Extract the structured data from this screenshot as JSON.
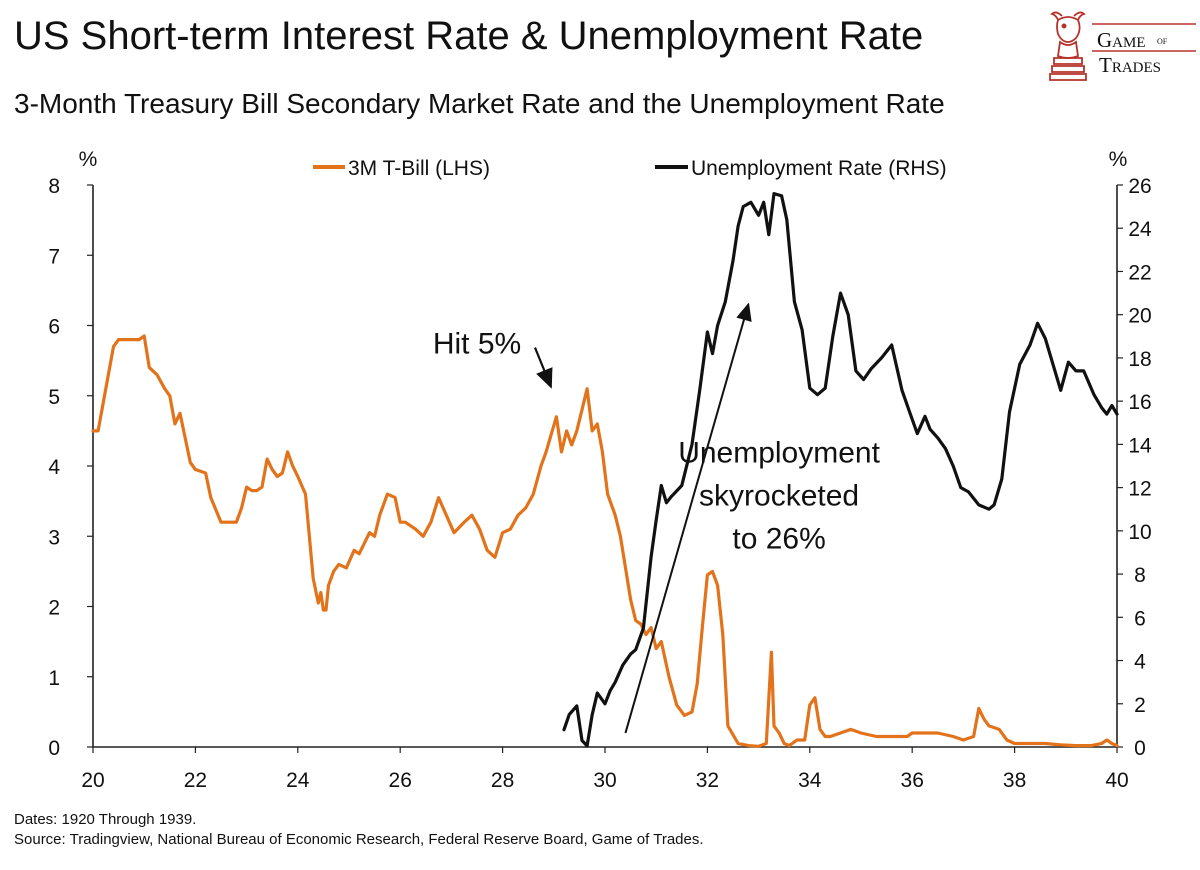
{
  "header": {
    "title": "US Short-term Interest Rate & Unemployment Rate",
    "subtitle": "3-Month Treasury Bill Secondary Market Rate and the Unemployment Rate"
  },
  "logo": {
    "line1": "Game",
    "line_of": "of",
    "line2": "Trades",
    "icon": "bull-knight-chess-icon",
    "color": "#b5332a"
  },
  "footer": {
    "dates": "Dates: 1920 Through 1939.",
    "source": "Source: Tradingview, National Bureau of Economic Research, Federal Reserve Board, Game of Trades."
  },
  "chart_data": {
    "type": "line",
    "title": "US Short-term Interest Rate & Unemployment Rate",
    "subtitle": "3-Month Treasury Bill Secondary Market Rate and the Unemployment Rate",
    "grid": false,
    "legend_position": "top-center",
    "x_axis": {
      "xlim": [
        1920,
        1940
      ],
      "ticks": [
        1920,
        1922,
        1924,
        1926,
        1928,
        1930,
        1932,
        1934,
        1936,
        1938,
        1940
      ],
      "tick_labels": [
        "20",
        "22",
        "24",
        "26",
        "28",
        "30",
        "32",
        "34",
        "36",
        "38",
        "40"
      ]
    },
    "y_left": {
      "unit_label": "%",
      "ylim": [
        0,
        8
      ],
      "ticks": [
        0,
        1,
        2,
        3,
        4,
        5,
        6,
        7,
        8
      ],
      "tick_labels": [
        "0",
        "1",
        "2",
        "3",
        "4",
        "5",
        "6",
        "7",
        "8"
      ]
    },
    "y_right": {
      "unit_label": "%",
      "ylim": [
        0,
        26
      ],
      "ticks": [
        0,
        2,
        4,
        6,
        8,
        10,
        12,
        14,
        16,
        18,
        20,
        22,
        24,
        26
      ],
      "tick_labels": [
        "0",
        "2",
        "4",
        "6",
        "8",
        "10",
        "12",
        "14",
        "16",
        "18",
        "20",
        "22",
        "24",
        "26"
      ]
    },
    "series": [
      {
        "name": "3M T-Bill (LHS)",
        "axis": "left",
        "color": "#e3731b",
        "x": [
          1920.0,
          1920.1,
          1920.25,
          1920.4,
          1920.5,
          1920.7,
          1920.9,
          1921.0,
          1921.1,
          1921.25,
          1921.4,
          1921.5,
          1921.6,
          1921.7,
          1921.8,
          1921.9,
          1922.0,
          1922.2,
          1922.3,
          1922.5,
          1922.65,
          1922.8,
          1922.9,
          1923.0,
          1923.1,
          1923.2,
          1923.3,
          1923.4,
          1923.5,
          1923.6,
          1923.7,
          1923.8,
          1923.9,
          1924.0,
          1924.15,
          1924.3,
          1924.4,
          1924.45,
          1924.5,
          1924.55,
          1924.6,
          1924.7,
          1924.8,
          1924.95,
          1925.1,
          1925.2,
          1925.4,
          1925.5,
          1925.6,
          1925.75,
          1925.9,
          1926.0,
          1926.1,
          1926.3,
          1926.45,
          1926.6,
          1926.75,
          1926.9,
          1927.05,
          1927.25,
          1927.4,
          1927.55,
          1927.7,
          1927.85,
          1928.0,
          1928.15,
          1928.3,
          1928.45,
          1928.6,
          1928.75,
          1928.85,
          1928.95,
          1929.05,
          1929.15,
          1929.25,
          1929.35,
          1929.45,
          1929.55,
          1929.65,
          1929.75,
          1929.85,
          1929.95,
          1930.05,
          1930.2,
          1930.3,
          1930.4,
          1930.5,
          1930.6,
          1930.7,
          1930.8,
          1930.9,
          1931.0,
          1931.1,
          1931.25,
          1931.4,
          1931.55,
          1931.7,
          1931.8,
          1931.9,
          1932.0,
          1932.1,
          1932.2,
          1932.3,
          1932.4,
          1932.6,
          1932.8,
          1933.0,
          1933.15,
          1933.25,
          1933.3,
          1933.4,
          1933.5,
          1933.6,
          1933.75,
          1933.9,
          1934.0,
          1934.1,
          1934.2,
          1934.3,
          1934.4,
          1934.6,
          1934.8,
          1935.0,
          1935.3,
          1935.6,
          1935.9,
          1936.0,
          1936.2,
          1936.5,
          1936.8,
          1937.0,
          1937.2,
          1937.3,
          1937.4,
          1937.5,
          1937.7,
          1937.85,
          1938.0,
          1938.3,
          1938.6,
          1938.9,
          1939.2,
          1939.5,
          1939.7,
          1939.8,
          1939.9,
          1940.0
        ],
        "y": [
          4.5,
          4.5,
          5.1,
          5.7,
          5.8,
          5.8,
          5.8,
          5.85,
          5.4,
          5.3,
          5.1,
          5.0,
          4.6,
          4.75,
          4.4,
          4.05,
          3.95,
          3.9,
          3.55,
          3.2,
          3.2,
          3.2,
          3.4,
          3.7,
          3.65,
          3.65,
          3.7,
          4.1,
          3.95,
          3.85,
          3.9,
          4.2,
          4.0,
          3.85,
          3.6,
          2.4,
          2.05,
          2.2,
          1.95,
          1.95,
          2.3,
          2.5,
          2.6,
          2.55,
          2.8,
          2.75,
          3.05,
          3.0,
          3.3,
          3.6,
          3.55,
          3.2,
          3.2,
          3.1,
          3.0,
          3.2,
          3.55,
          3.3,
          3.05,
          3.2,
          3.3,
          3.1,
          2.8,
          2.7,
          3.05,
          3.1,
          3.3,
          3.4,
          3.6,
          4.0,
          4.2,
          4.45,
          4.7,
          4.2,
          4.5,
          4.3,
          4.5,
          4.8,
          5.1,
          4.5,
          4.6,
          4.2,
          3.6,
          3.3,
          3.0,
          2.55,
          2.1,
          1.8,
          1.75,
          1.6,
          1.7,
          1.4,
          1.5,
          1.0,
          0.6,
          0.45,
          0.5,
          0.9,
          1.7,
          2.45,
          2.5,
          2.3,
          1.6,
          0.3,
          0.05,
          0.02,
          0.01,
          0.05,
          1.35,
          0.3,
          0.2,
          0.05,
          0.02,
          0.1,
          0.1,
          0.6,
          0.7,
          0.25,
          0.15,
          0.15,
          0.2,
          0.25,
          0.2,
          0.15,
          0.15,
          0.15,
          0.2,
          0.2,
          0.2,
          0.15,
          0.1,
          0.15,
          0.55,
          0.4,
          0.3,
          0.25,
          0.1,
          0.05,
          0.05,
          0.05,
          0.03,
          0.02,
          0.02,
          0.05,
          0.1,
          0.05,
          0.02
        ]
      },
      {
        "name": "Unemployment Rate (RHS)",
        "axis": "right",
        "color": "#111111",
        "x": [
          1929.2,
          1929.3,
          1929.45,
          1929.55,
          1929.65,
          1929.75,
          1929.85,
          1930.0,
          1930.1,
          1930.2,
          1930.35,
          1930.5,
          1930.6,
          1930.75,
          1930.9,
          1931.0,
          1931.1,
          1931.2,
          1931.3,
          1931.5,
          1931.7,
          1931.85,
          1932.0,
          1932.1,
          1932.2,
          1932.35,
          1932.5,
          1932.6,
          1932.7,
          1932.85,
          1933.0,
          1933.1,
          1933.2,
          1933.3,
          1933.45,
          1933.55,
          1933.7,
          1933.85,
          1934.0,
          1934.15,
          1934.3,
          1934.45,
          1934.6,
          1934.75,
          1934.9,
          1935.05,
          1935.2,
          1935.4,
          1935.6,
          1935.8,
          1935.95,
          1936.1,
          1936.25,
          1936.35,
          1936.5,
          1936.65,
          1936.8,
          1936.95,
          1937.1,
          1937.3,
          1937.5,
          1937.6,
          1937.75,
          1937.9,
          1938.1,
          1938.3,
          1938.45,
          1938.6,
          1938.75,
          1938.9,
          1939.05,
          1939.2,
          1939.35,
          1939.55,
          1939.7,
          1939.8,
          1939.9,
          1940.0
        ],
        "y": [
          0.8,
          1.5,
          1.9,
          0.3,
          0.05,
          1.5,
          2.5,
          2.0,
          2.6,
          3.0,
          3.8,
          4.3,
          4.5,
          5.5,
          8.8,
          10.5,
          12.1,
          11.3,
          11.6,
          12.1,
          14.0,
          16.5,
          19.2,
          18.2,
          19.5,
          20.6,
          22.5,
          24.1,
          25.0,
          25.2,
          24.6,
          25.2,
          23.7,
          25.6,
          25.5,
          24.4,
          20.6,
          19.3,
          16.6,
          16.3,
          16.6,
          19.0,
          21.0,
          20.0,
          17.4,
          17.0,
          17.5,
          18.0,
          18.6,
          16.5,
          15.5,
          14.5,
          15.3,
          14.7,
          14.3,
          13.8,
          13.0,
          12.0,
          11.8,
          11.2,
          11.0,
          11.2,
          12.4,
          15.5,
          17.7,
          18.6,
          19.6,
          18.9,
          17.7,
          16.5,
          17.8,
          17.4,
          17.4,
          16.3,
          15.7,
          15.4,
          15.8,
          15.4
        ]
      }
    ],
    "annotations": [
      {
        "text": "Hit 5%",
        "x": 1927.5,
        "y_left": 5.6,
        "arrow_to": {
          "x": 1929.1,
          "y_left": 5.1
        }
      },
      {
        "lines": [
          "Unemployment",
          "skyrocketed",
          "to 26%"
        ],
        "x": 1933.4,
        "y_left": 4.05,
        "arrow_from": {
          "x": 1930.4,
          "y_left": 0.2
        },
        "arrow_to": {
          "x": 1932.8,
          "y_left": 6.3
        }
      }
    ]
  }
}
